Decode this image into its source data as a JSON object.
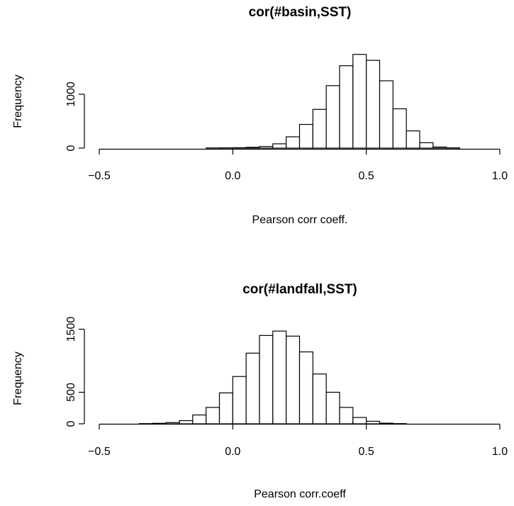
{
  "chart_data": [
    {
      "type": "bar",
      "title": "cor(#basin,SST)",
      "xlabel": "Pearson corr coeff.",
      "ylabel": "Frequency",
      "xlim": [
        -0.5,
        1.0
      ],
      "ylim": [
        0,
        1500
      ],
      "x_ticks": [
        "−0.5",
        "0.0",
        "0.5",
        "1.0"
      ],
      "y_ticks": [
        "0",
        "1000"
      ],
      "bins": {
        "start": -0.5,
        "width": 0.05,
        "values": [
          0,
          0,
          0,
          0,
          0,
          0,
          0,
          0,
          3,
          5,
          8,
          15,
          30,
          80,
          210,
          440,
          720,
          1160,
          1530,
          1740,
          1630,
          1250,
          730,
          320,
          100,
          20,
          5,
          0,
          0,
          0
        ]
      }
    },
    {
      "type": "bar",
      "title": "cor(#landfall,SST)",
      "xlabel": "Pearson corr.coeff",
      "ylabel": "Frequency",
      "xlim": [
        -0.5,
        1.0
      ],
      "ylim": [
        0,
        1500
      ],
      "x_ticks": [
        "−0.5",
        "0.0",
        "0.5",
        "1.0"
      ],
      "y_ticks": [
        "0",
        "500",
        "1500"
      ],
      "bins": {
        "start": -0.5,
        "width": 0.05,
        "values": [
          0,
          0,
          0,
          3,
          8,
          20,
          50,
          140,
          260,
          490,
          750,
          1120,
          1400,
          1470,
          1390,
          1140,
          790,
          500,
          260,
          100,
          40,
          10,
          3,
          0,
          0,
          0,
          0,
          0,
          0,
          0
        ]
      }
    }
  ]
}
